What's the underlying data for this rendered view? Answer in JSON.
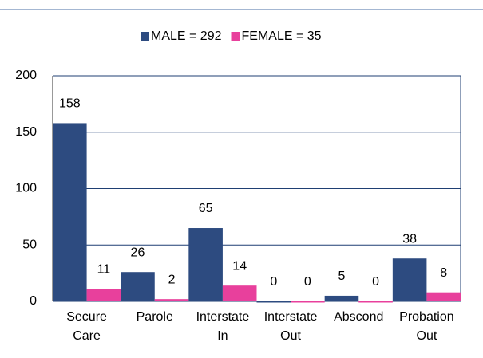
{
  "chart_data": {
    "type": "bar",
    "categories": [
      "Secure Care",
      "Parole",
      "Interstate In",
      "Interstate Out",
      "Abscond",
      "Probation Out"
    ],
    "series": [
      {
        "name": "MALE = 292",
        "color": "#2d4b80",
        "values": [
          158,
          26,
          65,
          0,
          5,
          38
        ]
      },
      {
        "name": "FEMALE = 35",
        "color": "#e8409c",
        "values": [
          11,
          2,
          14,
          0,
          0,
          8
        ]
      }
    ],
    "ylim": [
      0,
      200
    ],
    "yticks": [
      0,
      50,
      100,
      150,
      200
    ],
    "grid": true
  }
}
